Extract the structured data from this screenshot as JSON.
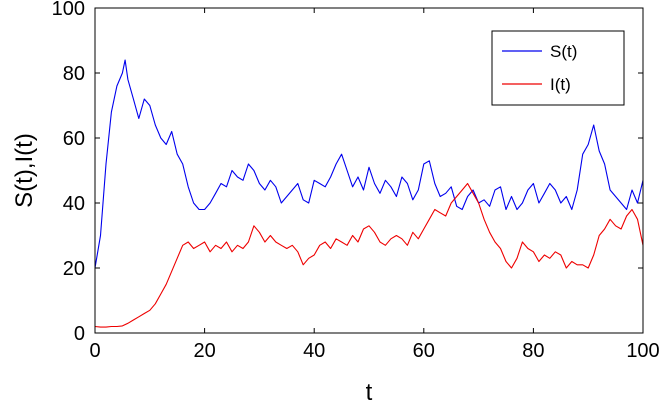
{
  "chart_data": {
    "type": "line",
    "xlabel": "t",
    "ylabel": "S(t),I(t)",
    "xlim": [
      0,
      100
    ],
    "ylim": [
      0,
      100
    ],
    "xticks": [
      "0",
      "20",
      "40",
      "60",
      "80",
      "100"
    ],
    "yticks": [
      "0",
      "20",
      "40",
      "60",
      "80",
      "100"
    ],
    "grid": false,
    "legend_position": "top-right",
    "series": [
      {
        "name": "S(t)",
        "color": "#0000ee",
        "x": [
          0,
          1,
          2,
          3,
          4,
          5,
          5.5,
          6,
          7,
          8,
          9,
          10,
          11,
          12,
          13,
          14,
          15,
          16,
          17,
          18,
          19,
          20,
          21,
          22,
          23,
          24,
          25,
          26,
          27,
          28,
          29,
          30,
          31,
          32,
          33,
          34,
          35,
          36,
          37,
          38,
          39,
          40,
          41,
          42,
          43,
          44,
          45,
          46,
          47,
          48,
          49,
          50,
          51,
          52,
          53,
          54,
          55,
          56,
          57,
          58,
          59,
          60,
          61,
          62,
          63,
          64,
          65,
          66,
          67,
          68,
          69,
          70,
          71,
          72,
          73,
          74,
          75,
          76,
          77,
          78,
          79,
          80,
          81,
          82,
          83,
          84,
          85,
          86,
          87,
          88,
          89,
          90,
          91,
          92,
          93,
          94,
          95,
          96,
          97,
          98,
          99,
          100
        ],
        "values": [
          20,
          30,
          52,
          68,
          76,
          80,
          84,
          78,
          72,
          66,
          72,
          70,
          64,
          60,
          58,
          62,
          55,
          52,
          45,
          40,
          38,
          38,
          40,
          43,
          46,
          45,
          50,
          48,
          47,
          52,
          50,
          46,
          44,
          47,
          45,
          40,
          42,
          44,
          46,
          41,
          40,
          47,
          46,
          45,
          48,
          52,
          55,
          50,
          45,
          48,
          44,
          51,
          46,
          43,
          47,
          45,
          42,
          48,
          46,
          41,
          44,
          52,
          53,
          46,
          42,
          43,
          45,
          39,
          38,
          42,
          44,
          40,
          41,
          39,
          44,
          45,
          38,
          42,
          38,
          40,
          44,
          46,
          40,
          43,
          46,
          44,
          40,
          42,
          38,
          44,
          55,
          58,
          64,
          56,
          52,
          44,
          42,
          40,
          38,
          44,
          40,
          47
        ]
      },
      {
        "name": "I(t)",
        "color": "#ee0000",
        "x": [
          0,
          1,
          2,
          3,
          4,
          5,
          6,
          7,
          8,
          9,
          10,
          11,
          12,
          13,
          14,
          15,
          16,
          17,
          18,
          19,
          20,
          21,
          22,
          23,
          24,
          25,
          26,
          27,
          28,
          29,
          30,
          31,
          32,
          33,
          34,
          35,
          36,
          37,
          38,
          39,
          40,
          41,
          42,
          43,
          44,
          45,
          46,
          47,
          48,
          49,
          50,
          51,
          52,
          53,
          54,
          55,
          56,
          57,
          58,
          59,
          60,
          61,
          62,
          63,
          64,
          65,
          66,
          67,
          68,
          69,
          70,
          71,
          72,
          73,
          74,
          75,
          76,
          77,
          78,
          79,
          80,
          81,
          82,
          83,
          84,
          85,
          86,
          87,
          88,
          89,
          90,
          91,
          92,
          93,
          94,
          95,
          96,
          97,
          98,
          99,
          100
        ],
        "values": [
          2,
          1.8,
          1.8,
          2,
          2,
          2.2,
          3,
          4,
          5,
          6,
          7,
          9,
          12,
          15,
          19,
          23,
          27,
          28,
          26,
          27,
          28,
          25,
          27,
          26,
          28,
          25,
          27,
          26,
          28,
          33,
          31,
          28,
          30,
          28,
          27,
          26,
          27,
          25,
          21,
          23,
          24,
          27,
          28,
          26,
          29,
          28,
          27,
          30,
          28,
          32,
          33,
          31,
          28,
          27,
          29,
          30,
          29,
          27,
          31,
          29,
          32,
          35,
          38,
          37,
          36,
          40,
          42,
          44,
          46,
          43,
          40,
          35,
          31,
          28,
          26,
          22,
          20,
          23,
          28,
          26,
          25,
          22,
          24,
          23,
          25,
          24,
          20,
          22,
          21,
          21,
          20,
          24,
          30,
          32,
          35,
          33,
          32,
          36,
          38,
          35,
          27
        ]
      }
    ]
  }
}
